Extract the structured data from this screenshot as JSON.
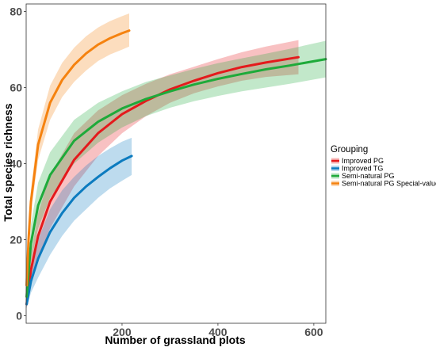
{
  "chart_data": {
    "type": "line",
    "xlabel": "Number of grassland plots",
    "ylabel": "Total species richness",
    "xlim": [
      0,
      625
    ],
    "ylim": [
      -2,
      82
    ],
    "x_ticks": [
      "200",
      "400",
      "600"
    ],
    "y_ticks": [
      "0",
      "20",
      "40",
      "60",
      "80"
    ],
    "grid": false,
    "legend": {
      "title": "Grouping",
      "position": "right"
    },
    "series": [
      {
        "name": "Improved PG",
        "color": "#e41a1c",
        "x": [
          1,
          10,
          25,
          50,
          100,
          150,
          200,
          250,
          300,
          350,
          400,
          450,
          500,
          568
        ],
        "y": [
          3,
          12,
          21,
          30,
          41,
          48,
          53,
          56.5,
          59.5,
          61.8,
          63.8,
          65.4,
          66.6,
          68
        ],
        "lower": [
          2,
          8,
          15,
          23,
          34,
          42,
          48,
          52.5,
          56,
          58.5,
          60.3,
          61.8,
          62.8,
          63.5
        ],
        "upper": [
          4,
          16,
          27,
          37,
          48,
          54,
          58,
          61,
          63.5,
          65.5,
          67.5,
          69.3,
          70.8,
          72.5
        ]
      },
      {
        "name": "Improved TG",
        "color": "#0c7bbf",
        "x": [
          1,
          10,
          25,
          50,
          75,
          100,
          125,
          150,
          175,
          200,
          220
        ],
        "y": [
          3,
          9,
          15,
          22,
          27,
          31,
          34,
          36.5,
          38.8,
          40.8,
          42
        ],
        "lower": [
          2,
          6,
          10,
          16,
          21,
          25,
          28,
          31,
          33.5,
          35.5,
          37
        ],
        "upper": [
          4,
          12,
          20,
          28,
          33,
          36.5,
          39.5,
          42,
          44,
          45.8,
          46.8
        ]
      },
      {
        "name": "Semi-natural PG",
        "color": "#1eaa3a",
        "x": [
          1,
          10,
          25,
          50,
          100,
          150,
          200,
          250,
          300,
          350,
          400,
          450,
          500,
          550,
          625
        ],
        "y": [
          5,
          19,
          29,
          37,
          46,
          51,
          54.5,
          57,
          59,
          60.8,
          62.3,
          63.6,
          64.8,
          65.8,
          67.5
        ],
        "lower": [
          4,
          14,
          23,
          31,
          40,
          45.5,
          49.5,
          52.5,
          54.7,
          56.4,
          57.8,
          59,
          60,
          61,
          62.7
        ],
        "upper": [
          6,
          24,
          35,
          43,
          51.5,
          56,
          59,
          61.5,
          63.2,
          64.9,
          66.4,
          67.7,
          68.9,
          70.2,
          72.3
        ]
      },
      {
        "name": "Semi-natural PG Special-values",
        "color": "#f5820f",
        "x": [
          1,
          5,
          10,
          25,
          50,
          75,
          100,
          125,
          150,
          175,
          200,
          215
        ],
        "y": [
          8,
          20,
          30,
          45,
          56,
          62,
          66,
          69,
          71.3,
          73,
          74.3,
          75
        ],
        "lower": [
          7,
          18,
          27,
          41,
          51.5,
          57.5,
          61.5,
          64.5,
          67,
          68.7,
          70,
          70.8
        ],
        "upper": [
          9,
          22,
          33,
          49,
          60.5,
          66.5,
          70.5,
          73.5,
          75.8,
          77.5,
          78.8,
          79.5
        ]
      }
    ]
  }
}
